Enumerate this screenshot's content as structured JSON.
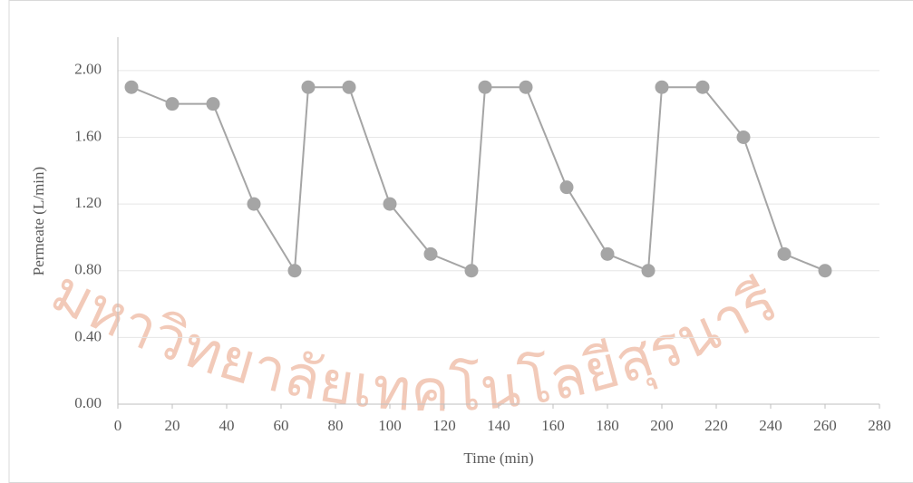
{
  "chart_data": {
    "type": "scatter-line",
    "x_label": "Time (min)",
    "y_label": "Permeate (L/min)",
    "watermark": "มหาวิทยาลัยเทคโนโลยีสุรนารี",
    "series": [
      {
        "color": "#a5a5a5",
        "x": [
          5,
          20,
          35,
          50,
          65,
          70,
          85,
          100,
          115,
          130,
          135,
          150,
          165,
          180,
          195,
          200,
          215,
          230,
          245,
          260
        ],
        "values": [
          1.9,
          1.8,
          1.8,
          1.2,
          0.8,
          1.9,
          1.9,
          1.2,
          0.9,
          0.8,
          1.9,
          1.9,
          1.3,
          0.9,
          0.8,
          1.9,
          1.9,
          1.6,
          0.9,
          0.8
        ]
      }
    ],
    "xlim": [
      0,
      280
    ],
    "xticks": [
      0,
      20,
      40,
      60,
      80,
      100,
      120,
      140,
      160,
      180,
      200,
      220,
      240,
      260,
      280
    ],
    "ylim": [
      0,
      2.2
    ],
    "yticks": [
      {
        "value": 0,
        "label": "0.00"
      },
      {
        "value": 0.4,
        "label": "0.40"
      },
      {
        "value": 0.8,
        "label": "0.80"
      },
      {
        "value": 1.2,
        "label": "1.20"
      },
      {
        "value": 1.6,
        "label": "1.60"
      },
      {
        "value": 2.0,
        "label": "2.00"
      }
    ],
    "grid": true
  }
}
